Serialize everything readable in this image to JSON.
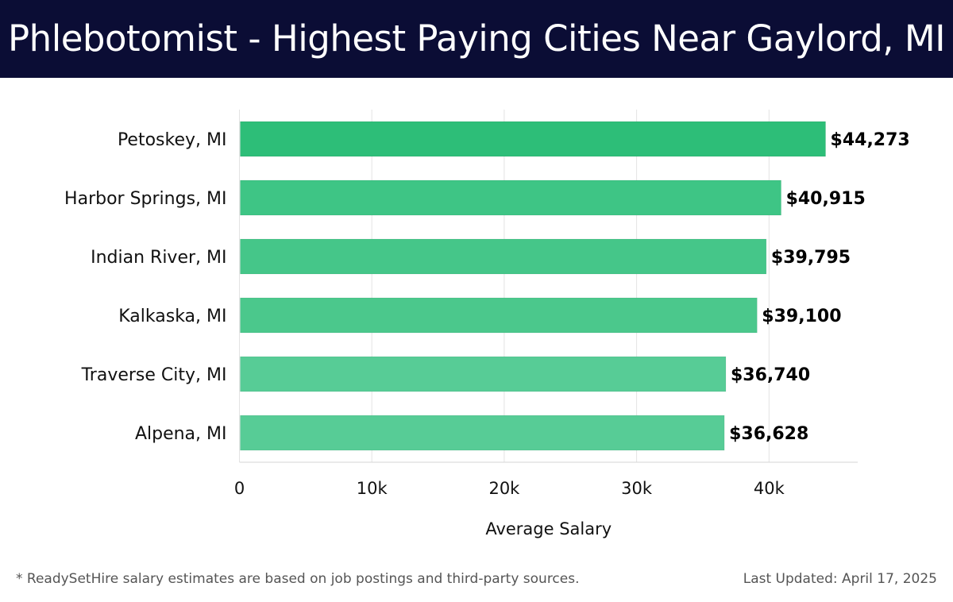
{
  "header": {
    "title": "Phlebotomist - Highest Paying Cities Near Gaylord, MI",
    "background": "#0b0d35"
  },
  "chart_data": {
    "type": "bar",
    "orientation": "horizontal",
    "categories": [
      "Petoskey, MI",
      "Harbor Springs, MI",
      "Indian River, MI",
      "Kalkaska, MI",
      "Traverse City, MI",
      "Alpena, MI"
    ],
    "values": [
      44273,
      40915,
      39795,
      39100,
      36740,
      36628
    ],
    "value_labels": [
      "$44,273",
      "$40,915",
      "$39,795",
      "$39,100",
      "$36,740",
      "$36,628"
    ],
    "bar_colors": [
      "#2dbe78",
      "#3ec585",
      "#45c689",
      "#4bc88c",
      "#57cc96",
      "#57cc96"
    ],
    "xlabel": "Average Salary",
    "xticks": [
      0,
      10000,
      20000,
      30000,
      40000
    ],
    "xtick_labels": [
      "0",
      "10k",
      "20k",
      "30k",
      "40k"
    ],
    "xlim": [
      0,
      46700
    ],
    "grid": "vertical"
  },
  "footer": {
    "note": "* ReadySetHire salary estimates are based on job postings and third-party sources.",
    "updated": "Last Updated: April 17, 2025"
  }
}
